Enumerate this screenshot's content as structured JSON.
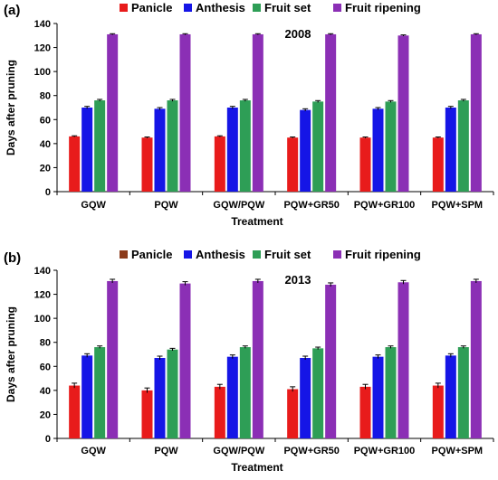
{
  "chart_data": [
    {
      "type": "bar",
      "panel_label": "(a)",
      "annotation": "2008",
      "xlabel": "Treatment",
      "ylabel": "Days after pruning",
      "ylim": [
        0,
        140
      ],
      "yticks": [
        0,
        20,
        40,
        60,
        80,
        100,
        120,
        140
      ],
      "legend_position": "top",
      "grid": false,
      "categories": [
        "GQW",
        "PQW",
        "GQW/PQW",
        "PQW+GR50",
        "PQW+GR100",
        "PQW+SPM"
      ],
      "series": [
        {
          "name": "Panicle",
          "color": "#e81b1b",
          "values": [
            46,
            45,
            46,
            45,
            45,
            45
          ],
          "errors": [
            0.5,
            0.5,
            0.5,
            0.5,
            0.5,
            0.5
          ]
        },
        {
          "name": "Anthesis",
          "color": "#1515e6",
          "values": [
            70,
            69,
            70,
            68,
            69,
            70
          ],
          "errors": [
            1,
            1,
            1,
            1,
            1,
            1
          ]
        },
        {
          "name": "Fruit set",
          "color": "#2e9e56",
          "values": [
            76,
            76,
            76,
            75,
            75,
            76
          ],
          "errors": [
            0.8,
            0.8,
            0.8,
            0.8,
            0.8,
            0.8
          ]
        },
        {
          "name": "Fruit ripening",
          "color": "#8b2fb5",
          "values": [
            131,
            131,
            131,
            131,
            130,
            131
          ],
          "errors": [
            0.5,
            0.5,
            0.5,
            0.5,
            0.5,
            0.5
          ]
        }
      ]
    },
    {
      "type": "bar",
      "panel_label": "(b)",
      "annotation": "2013",
      "xlabel": "Treatment",
      "ylabel": "Days after pruning",
      "ylim": [
        0,
        140
      ],
      "yticks": [
        0,
        20,
        40,
        60,
        80,
        100,
        120,
        140
      ],
      "legend_position": "top",
      "grid": false,
      "categories": [
        "GQW",
        "PQW",
        "GQW/PQW",
        "PQW+GR50",
        "PQW+GR100",
        "PQW+SPM"
      ],
      "series": [
        {
          "name": "Panicle",
          "color": "#e81b1b",
          "legend_color": "#8b3a1a",
          "values": [
            44,
            40,
            43,
            41,
            43,
            44
          ],
          "errors": [
            2,
            2,
            2,
            2,
            2,
            2
          ]
        },
        {
          "name": "Anthesis",
          "color": "#1515e6",
          "values": [
            69,
            67,
            68,
            67,
            68,
            69
          ],
          "errors": [
            1.5,
            1.5,
            1.5,
            1.5,
            1.5,
            1.5
          ]
        },
        {
          "name": "Fruit set",
          "color": "#2e9e56",
          "values": [
            76,
            74,
            76,
            75,
            76,
            76
          ],
          "errors": [
            1,
            1,
            1,
            1,
            1,
            1
          ]
        },
        {
          "name": "Fruit ripening",
          "color": "#8b2fb5",
          "values": [
            131,
            129,
            131,
            128,
            130,
            131
          ],
          "errors": [
            1.5,
            1.5,
            1.5,
            1.5,
            1.5,
            1.5
          ]
        }
      ]
    }
  ]
}
